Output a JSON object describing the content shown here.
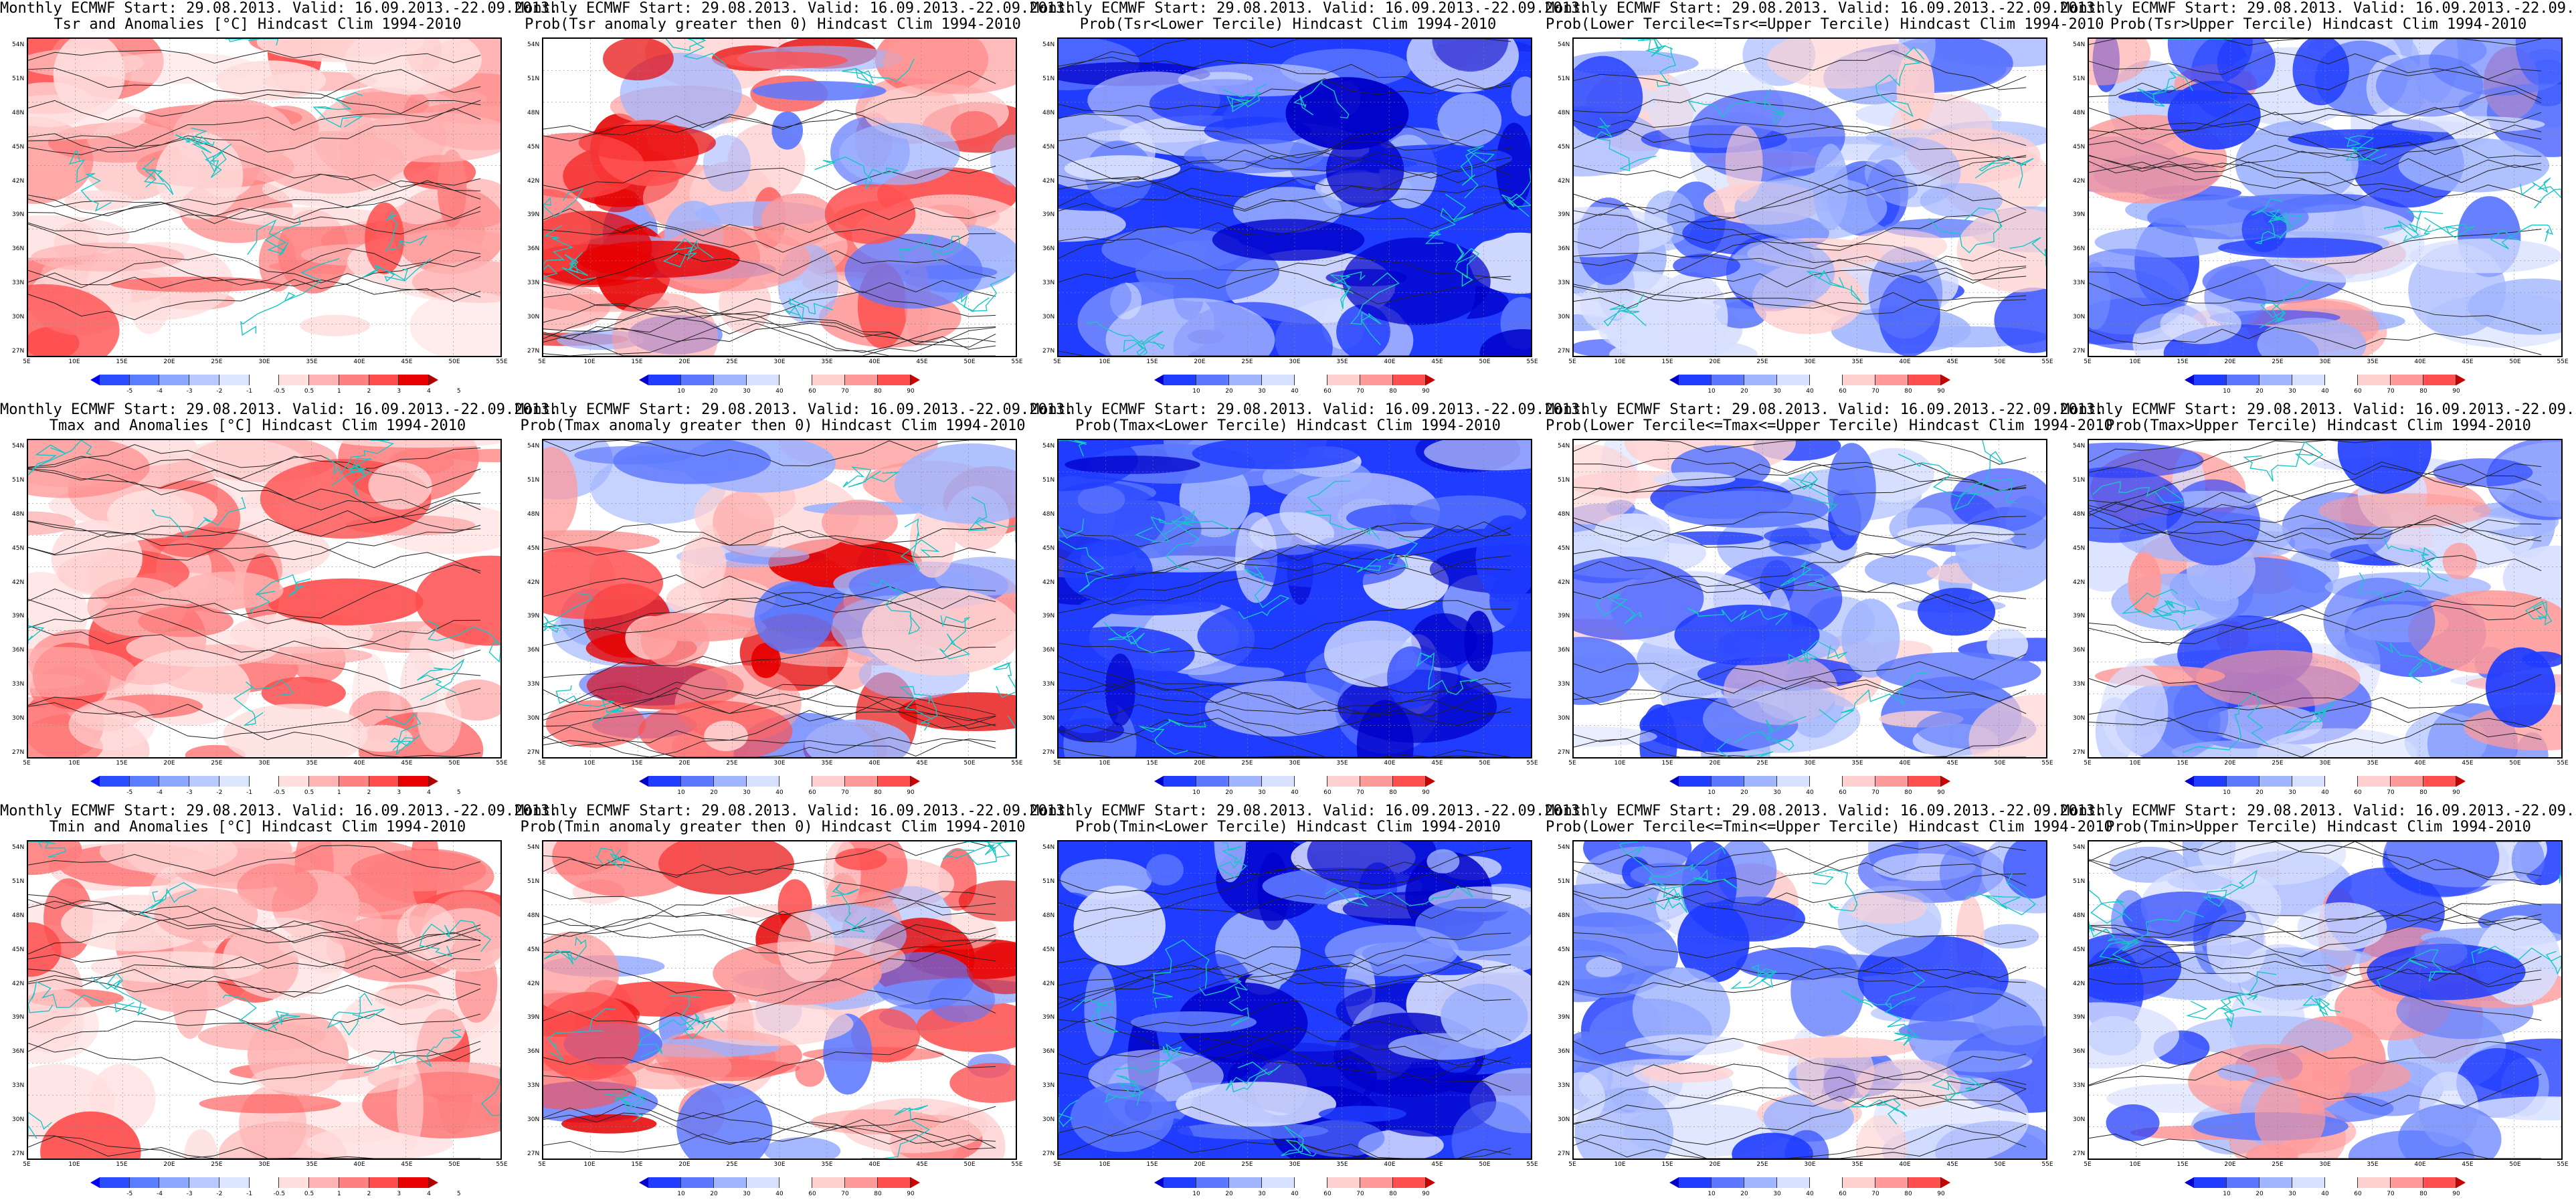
{
  "title_line1": "Monthly ECMWF Start: 29.08.2013. Valid: 16.09.2013.-22.09.2013.",
  "latitude_labels": [
    "54N",
    "51N",
    "48N",
    "45N",
    "42N",
    "39N",
    "36N",
    "33N",
    "30N",
    "27N"
  ],
  "longitude_labels": [
    "5E",
    "10E",
    "15E",
    "20E",
    "25E",
    "30E",
    "35E",
    "40E",
    "45E",
    "50E",
    "55E"
  ],
  "colorbars": {
    "anom": {
      "labels": [
        "-5",
        "-4",
        "-3",
        "-2",
        "-1",
        "-0.5",
        "0.5",
        "1",
        "2",
        "3",
        "4",
        "5"
      ],
      "colors": [
        "#0000ff",
        "#2b4fff",
        "#5a7dff",
        "#8aa6ff",
        "#b8c9ff",
        "#dde6ff",
        "#ffffff",
        "#ffdede",
        "#ffb3b3",
        "#ff8080",
        "#ff4d4d",
        "#e60000",
        "#b30000"
      ]
    },
    "prob": {
      "labels": [
        "10",
        "20",
        "30",
        "40",
        "60",
        "70",
        "80",
        "90"
      ],
      "colors": [
        "#0000c8",
        "#1f3cff",
        "#5c78ff",
        "#a0b4ff",
        "#d8e0ff",
        "#ffffff",
        "#ffd0d0",
        "#ff9a9a",
        "#ff5050",
        "#c80000"
      ]
    }
  },
  "panels": [
    {
      "title2": "Tsr and Anomalies [°C] Hindcast Clim 1994-2010",
      "type": "anom"
    },
    {
      "title2": "Prob(Tsr anomaly greater then 0) Hindcast Clim 1994-2010",
      "type": "probpos"
    },
    {
      "title2": "Prob(Tsr<Lower Tercile) Hindcast Clim 1994-2010",
      "type": "lower"
    },
    {
      "title2": "Prob(Lower Tercile<=Tsr<=Upper Tercile) Hindcast Clim 1994-2010",
      "type": "middle"
    },
    {
      "title2": "Prob(Tsr>Upper Tercile) Hindcast Clim 1994-2010",
      "type": "upper"
    },
    {
      "title2": "Tmax and Anomalies [°C] Hindcast Clim 1994-2010",
      "type": "anom"
    },
    {
      "title2": "Prob(Tmax anomaly greater then 0) Hindcast Clim 1994-2010",
      "type": "probpos"
    },
    {
      "title2": "Prob(Tmax<Lower Tercile) Hindcast Clim 1994-2010",
      "type": "lower"
    },
    {
      "title2": "Prob(Lower Tercile<=Tmax<=Upper Tercile) Hindcast Clim 1994-2010",
      "type": "middle"
    },
    {
      "title2": "Prob(Tmax>Upper Tercile) Hindcast Clim 1994-2010",
      "type": "upper"
    },
    {
      "title2": "Tmin and Anomalies [°C] Hindcast Clim 1994-2010",
      "type": "anom"
    },
    {
      "title2": "Prob(Tmin anomaly greater then 0) Hindcast Clim 1994-2010",
      "type": "probpos"
    },
    {
      "title2": "Prob(Tmin<Lower Tercile) Hindcast Clim 1994-2010",
      "type": "lower"
    },
    {
      "title2": "Prob(Lower Tercile<=Tmin<=Upper Tercile) Hindcast Clim 1994-2010",
      "type": "middle"
    },
    {
      "title2": "Prob(Tmin>Upper Tercile) Hindcast Clim 1994-2010",
      "type": "upper"
    }
  ]
}
